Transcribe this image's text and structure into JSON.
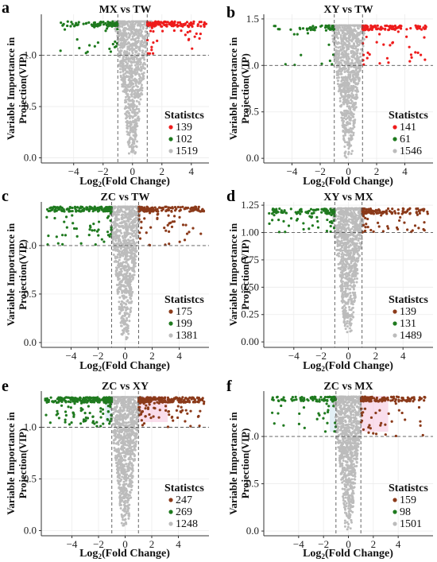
{
  "figure": {
    "y_axis_label_line1": "Variable Importance in",
    "y_axis_label_line2": "Projection(VIP)",
    "x_axis_label_main": "Log",
    "x_axis_label_sub": "2",
    "x_axis_label_rest": "(Fold Change)",
    "legend_title": "Statistcs"
  },
  "colors": {
    "up": "#ee1c1c",
    "down": "#1f7a1f",
    "ns": "#bcbcbc",
    "dark_up": "#8b3a1a",
    "grid": "#ececec"
  },
  "chart_data": [
    {
      "type": "scatter",
      "panel": "a",
      "title": "MX vs TW",
      "xlabel": "Log2(Fold Change)",
      "ylabel": "Variable Importance in Projection(VIP)",
      "xlim": [
        -6.2,
        5.2
      ],
      "ylim": [
        -0.05,
        1.4
      ],
      "xticks": [
        -4,
        -2,
        0,
        2,
        4
      ],
      "xtick_labels": [
        "−4",
        "−2",
        "0",
        "2",
        "4"
      ],
      "yticks": [
        0.0,
        0.5,
        1.0
      ],
      "ytick_labels": [
        "0.0",
        "0.5",
        "1.0"
      ],
      "vip_threshold": 1.0,
      "fc_thresholds": [
        -1,
        1
      ],
      "legend": {
        "title": "Statistcs",
        "entries": [
          {
            "label": "139",
            "color": "#ee1c1c"
          },
          {
            "label": "102",
            "color": "#1f7a1f"
          },
          {
            "label": "1519",
            "color": "#bcbcbc"
          }
        ]
      },
      "counts": {
        "up": 139,
        "down": 102,
        "ns": 1519
      },
      "max_vip": 1.33,
      "xspread": 5.0,
      "style": "bright"
    },
    {
      "type": "scatter",
      "panel": "b",
      "title": "XY vs TW",
      "xlabel": "Log2(Fold Change)",
      "ylabel": "Variable Importance in Projection(VIP)",
      "xlim": [
        -6.0,
        6.0
      ],
      "ylim": [
        -0.05,
        1.55
      ],
      "xticks": [
        -4,
        -2,
        0,
        2,
        4
      ],
      "xtick_labels": [
        "−4",
        "−2",
        "0",
        "2",
        "4"
      ],
      "yticks": [
        0.0,
        0.5,
        1.0,
        1.5
      ],
      "ytick_labels": [
        "0.0",
        "0.5",
        "1.0",
        "1.5"
      ],
      "vip_threshold": 1.0,
      "fc_thresholds": [
        -1,
        1
      ],
      "legend": {
        "title": "Statistcs",
        "entries": [
          {
            "label": "141",
            "color": "#ee1c1c"
          },
          {
            "label": "61",
            "color": "#1f7a1f"
          },
          {
            "label": "1546",
            "color": "#bcbcbc"
          }
        ]
      },
      "counts": {
        "up": 141,
        "down": 61,
        "ns": 1546
      },
      "max_vip": 1.43,
      "xspread": 5.5,
      "style": "bright"
    },
    {
      "type": "scatter",
      "panel": "c",
      "title": "ZC vs TW",
      "xlabel": "Log2(Fold Change)",
      "ylabel": "Variable Importance in Projection(VIP)",
      "xlim": [
        -6.2,
        6.2
      ],
      "ylim": [
        -0.05,
        1.45
      ],
      "xticks": [
        -4,
        -2,
        0,
        2,
        4
      ],
      "xtick_labels": [
        "−4",
        "−2",
        "0",
        "2",
        "4"
      ],
      "yticks": [
        0.0,
        0.5,
        1.0
      ],
      "ytick_labels": [
        "0.0",
        "0.5",
        "1.0"
      ],
      "vip_threshold": 1.0,
      "fc_thresholds": [
        -1,
        1
      ],
      "legend": {
        "title": "Statistcs",
        "entries": [
          {
            "label": "175",
            "color": "#8b3a1a"
          },
          {
            "label": "199",
            "color": "#1f7a1f"
          },
          {
            "label": "1381",
            "color": "#bcbcbc"
          }
        ]
      },
      "counts": {
        "up": 175,
        "down": 199,
        "ns": 1381
      },
      "max_vip": 1.4,
      "xspread": 5.8,
      "style": "bright"
    },
    {
      "type": "scatter",
      "panel": "d",
      "title": "XY vs MX",
      "xlabel": "Log2(Fold Change)",
      "ylabel": "Variable Importance in Projection(VIP)",
      "xlim": [
        -6.2,
        6.2
      ],
      "ylim": [
        -0.05,
        1.28
      ],
      "xticks": [
        -4,
        -2,
        0,
        2,
        4
      ],
      "xtick_labels": [
        "−4",
        "−2",
        "0",
        "2",
        "4"
      ],
      "yticks": [
        0.0,
        0.25,
        0.5,
        0.75,
        1.0,
        1.25
      ],
      "ytick_labels": [
        "0.00",
        "0.25",
        "0.50",
        "0.75",
        "1.00",
        "1.25"
      ],
      "vip_threshold": 1.0,
      "fc_thresholds": [
        -1,
        1
      ],
      "legend": {
        "title": "Statistcs",
        "entries": [
          {
            "label": "139",
            "color": "#8b3a1a"
          },
          {
            "label": "131",
            "color": "#1f7a1f"
          },
          {
            "label": "1489",
            "color": "#bcbcbc"
          }
        ]
      },
      "counts": {
        "up": 139,
        "down": 131,
        "ns": 1489
      },
      "max_vip": 1.22,
      "xspread": 5.8,
      "style": "bright"
    },
    {
      "type": "scatter",
      "panel": "e",
      "title": "ZC vs XY",
      "xlabel": "Log2(Fold Change)",
      "ylabel": "Variable Importance in Projection(VIP)",
      "xlim": [
        -6.3,
        6.3
      ],
      "ylim": [
        -0.05,
        1.35
      ],
      "xticks": [
        -4,
        -2,
        0,
        2,
        4
      ],
      "xtick_labels": [
        "−4",
        "−2",
        "0",
        "2",
        "4"
      ],
      "yticks": [
        0.0,
        0.5,
        1.0
      ],
      "ytick_labels": [
        "0.0",
        "0.5",
        "1.0"
      ],
      "vip_threshold": 1.0,
      "fc_thresholds": [
        -1,
        1
      ],
      "legend": {
        "title": "Statistcs",
        "entries": [
          {
            "label": "247",
            "color": "#8b3a1a"
          },
          {
            "label": "269",
            "color": "#1f7a1f"
          },
          {
            "label": "1248",
            "color": "#bcbcbc"
          }
        ]
      },
      "counts": {
        "up": 247,
        "down": 269,
        "ns": 1248
      },
      "max_vip": 1.29,
      "xspread": 6.0,
      "style": "dark"
    },
    {
      "type": "scatter",
      "panel": "f",
      "title": "ZC vs MX",
      "xlabel": "Log2(Fold Change)",
      "ylabel": "Variable Importance in Projection(VIP)",
      "xlim": [
        -6.8,
        6.8
      ],
      "ylim": [
        -0.05,
        1.48
      ],
      "xticks": [
        -4,
        -2,
        0,
        2,
        4
      ],
      "xtick_labels": [
        "−4",
        "−2",
        "0",
        "2",
        "4"
      ],
      "yticks": [
        0.0,
        0.5,
        1.0
      ],
      "ytick_labels": [
        "0.0",
        "0.5",
        "1.0"
      ],
      "vip_threshold": 1.0,
      "fc_thresholds": [
        -1,
        1
      ],
      "legend": {
        "title": "Statistcs",
        "entries": [
          {
            "label": "159",
            "color": "#8b3a1a"
          },
          {
            "label": "98",
            "color": "#1f7a1f"
          },
          {
            "label": "1501",
            "color": "#bcbcbc"
          }
        ]
      },
      "counts": {
        "up": 159,
        "down": 98,
        "ns": 1501
      },
      "max_vip": 1.42,
      "xspread": 6.2,
      "style": "dark"
    }
  ]
}
